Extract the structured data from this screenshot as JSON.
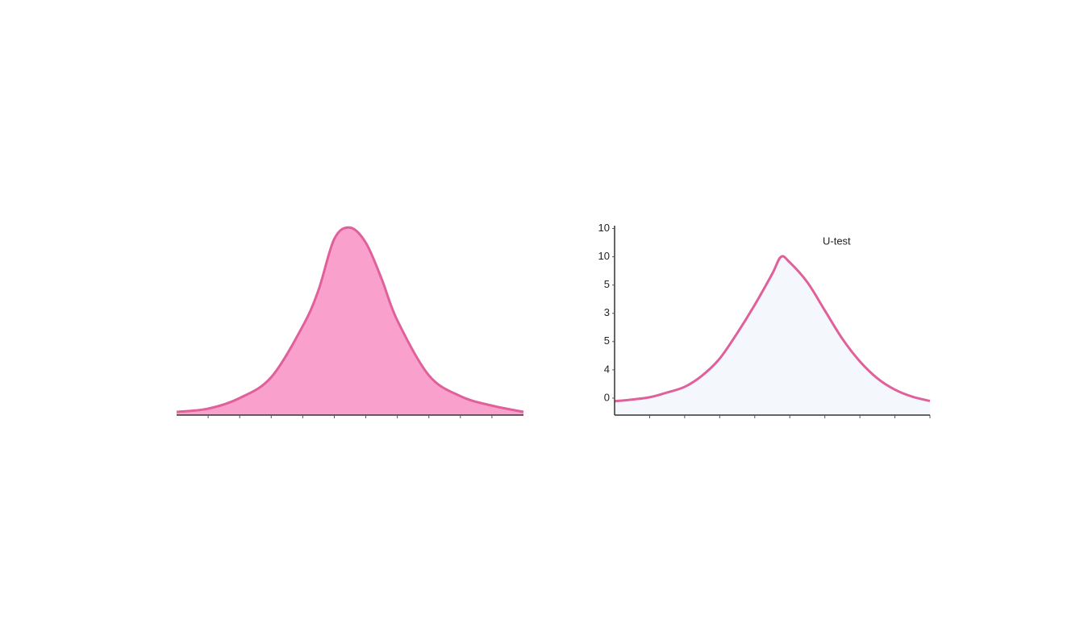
{
  "chart_data": [
    {
      "type": "area",
      "color": "#e0609a",
      "fill": "#f9a0cc",
      "x": [
        0,
        1,
        2,
        3,
        4,
        4.5,
        5,
        5.5,
        6,
        6.5,
        7,
        8,
        9,
        10,
        11
      ],
      "values": [
        0.017,
        0.034,
        0.09,
        0.2,
        0.47,
        0.66,
        0.93,
        0.99,
        0.91,
        0.72,
        0.5,
        0.21,
        0.1,
        0.05,
        0.017
      ],
      "xlim": [
        0,
        11
      ],
      "ylim": [
        0,
        1
      ],
      "xticks": [
        1,
        2,
        3,
        4,
        5,
        6,
        7,
        8,
        9,
        10
      ]
    },
    {
      "type": "area",
      "color": "#e0609a",
      "fill": "#f4f8fd",
      "annotation": "U-test",
      "x": [
        0,
        0.5,
        1,
        1.5,
        2,
        2.5,
        3,
        3.5,
        4,
        4.5,
        4.75,
        5,
        5.5,
        6,
        6.5,
        7,
        7.5,
        8,
        8.5,
        9
      ],
      "values": [
        -0.11,
        -0.05,
        0.03,
        0.2,
        0.4,
        0.8,
        1.4,
        2.3,
        3.3,
        4.4,
        5.0,
        4.8,
        4.1,
        3.1,
        2.1,
        1.3,
        0.7,
        0.3,
        0.05,
        -0.1
      ],
      "xlim": [
        0,
        9
      ],
      "ylim": [
        -0.6,
        6.1
      ],
      "xticks": [
        1,
        2,
        3,
        4,
        5,
        6,
        7,
        8,
        9
      ],
      "yticks": [
        {
          "value": 6,
          "label": "10"
        },
        {
          "value": 5,
          "label": "10"
        },
        {
          "value": 4,
          "label": "5"
        },
        {
          "value": 3,
          "label": "3"
        },
        {
          "value": 2,
          "label": "5"
        },
        {
          "value": 1,
          "label": "4"
        },
        0
      ]
    }
  ]
}
